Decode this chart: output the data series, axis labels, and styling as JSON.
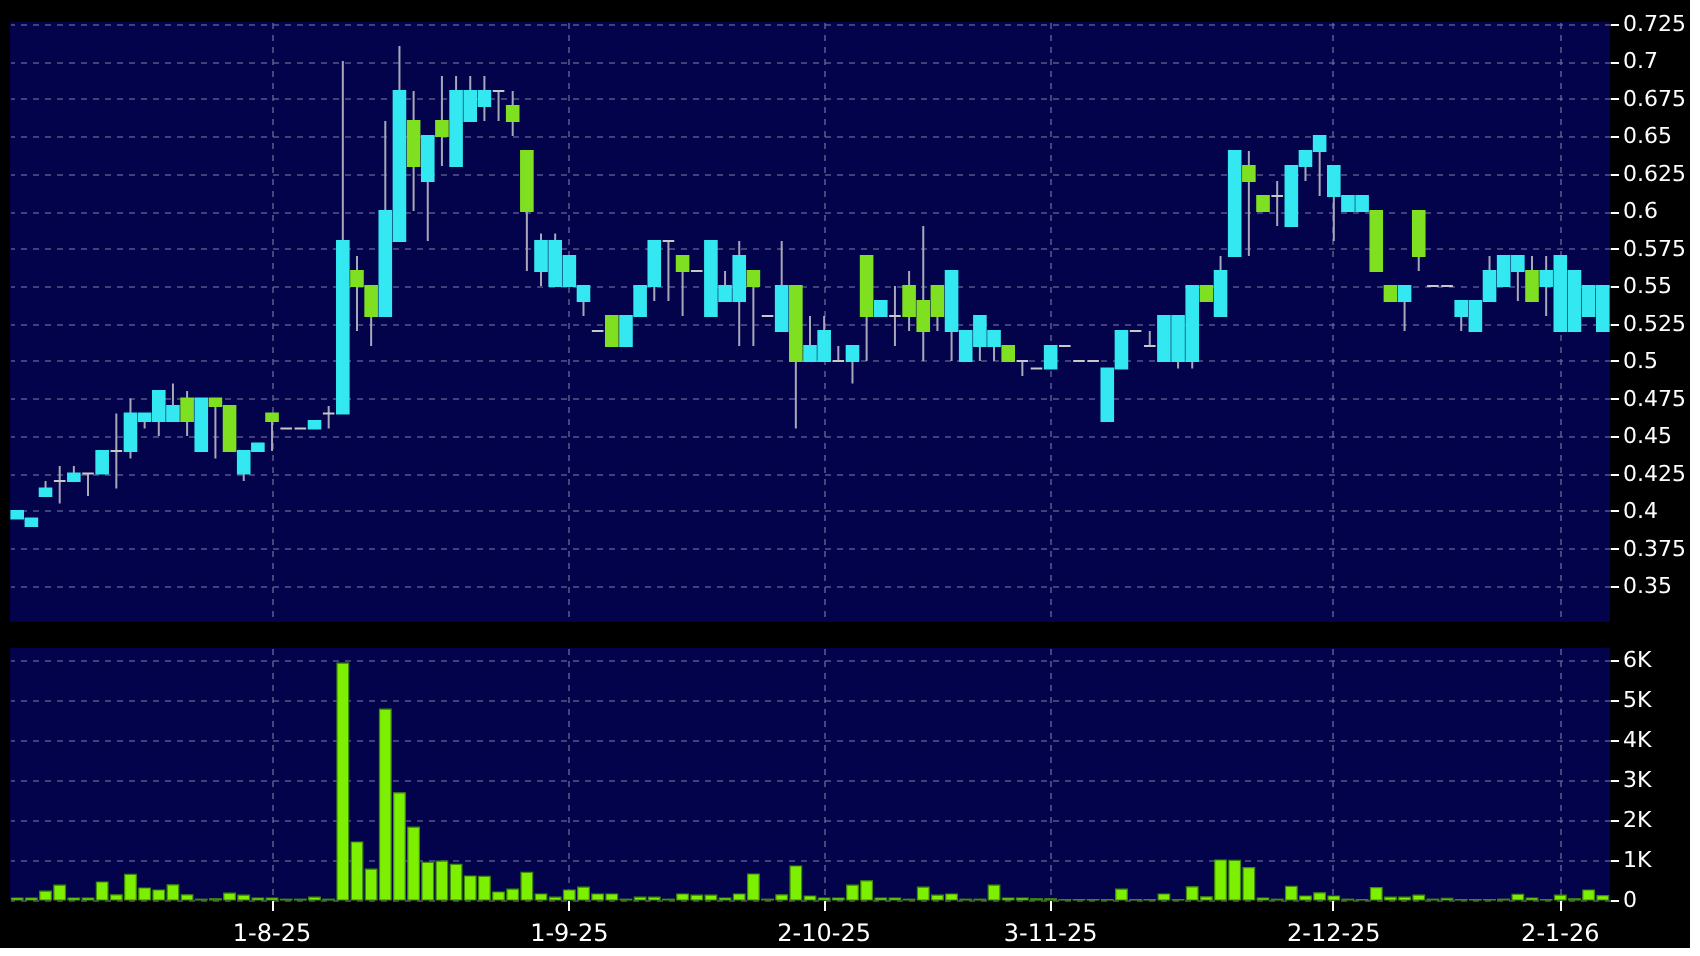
{
  "chart_data": [
    {
      "type": "candlestick",
      "tick_labels": "y",
      "grid": true,
      "ohlc": [
        [
          0.395,
          0.4,
          0.395,
          0.4
        ],
        [
          0.39,
          0.395,
          0.39,
          0.395
        ],
        [
          0.41,
          0.42,
          0.41,
          0.415
        ],
        [
          0.42,
          0.43,
          0.405,
          0.42
        ],
        [
          0.42,
          0.43,
          0.42,
          0.425
        ],
        [
          0.425,
          0.425,
          0.41,
          0.425
        ],
        [
          0.425,
          0.44,
          0.425,
          0.44
        ],
        [
          0.44,
          0.465,
          0.415,
          0.44
        ],
        [
          0.44,
          0.475,
          0.435,
          0.465
        ],
        [
          0.46,
          0.465,
          0.455,
          0.465
        ],
        [
          0.46,
          0.48,
          0.45,
          0.48
        ],
        [
          0.46,
          0.485,
          0.46,
          0.47
        ],
        [
          0.475,
          0.48,
          0.45,
          0.46
        ],
        [
          0.44,
          0.475,
          0.44,
          0.475
        ],
        [
          0.475,
          0.475,
          0.435,
          0.47
        ],
        [
          0.47,
          0.47,
          0.44,
          0.44
        ],
        [
          0.425,
          0.44,
          0.42,
          0.44
        ],
        [
          0.44,
          0.445,
          0.44,
          0.445
        ],
        [
          0.465,
          0.465,
          0.44,
          0.46
        ],
        [
          0.455,
          0.455,
          0.455,
          0.455
        ],
        [
          0.455,
          0.455,
          0.455,
          0.455
        ],
        [
          0.455,
          0.46,
          0.455,
          0.46
        ],
        [
          0.465,
          0.47,
          0.455,
          0.465
        ],
        [
          0.465,
          0.7,
          0.465,
          0.58
        ],
        [
          0.56,
          0.57,
          0.52,
          0.55
        ],
        [
          0.55,
          0.55,
          0.51,
          0.53
        ],
        [
          0.53,
          0.66,
          0.53,
          0.6
        ],
        [
          0.58,
          0.71,
          0.58,
          0.68
        ],
        [
          0.66,
          0.68,
          0.6,
          0.63
        ],
        [
          0.62,
          0.65,
          0.58,
          0.65
        ],
        [
          0.66,
          0.69,
          0.63,
          0.65
        ],
        [
          0.63,
          0.69,
          0.63,
          0.68
        ],
        [
          0.66,
          0.69,
          0.66,
          0.68
        ],
        [
          0.67,
          0.69,
          0.66,
          0.68
        ],
        [
          0.68,
          0.68,
          0.66,
          0.68
        ],
        [
          0.67,
          0.68,
          0.65,
          0.66
        ],
        [
          0.64,
          0.64,
          0.56,
          0.6
        ],
        [
          0.56,
          0.585,
          0.55,
          0.58
        ],
        [
          0.55,
          0.585,
          0.55,
          0.58
        ],
        [
          0.55,
          0.57,
          0.55,
          0.57
        ],
        [
          0.54,
          0.55,
          0.53,
          0.55
        ],
        [
          0.52,
          0.52,
          0.52,
          0.52
        ],
        [
          0.53,
          0.53,
          0.51,
          0.51
        ],
        [
          0.51,
          0.53,
          0.51,
          0.53
        ],
        [
          0.53,
          0.55,
          0.53,
          0.55
        ],
        [
          0.55,
          0.58,
          0.54,
          0.58
        ],
        [
          0.58,
          0.58,
          0.54,
          0.58
        ],
        [
          0.57,
          0.57,
          0.53,
          0.56
        ],
        [
          0.56,
          0.56,
          0.56,
          0.56
        ],
        [
          0.53,
          0.58,
          0.53,
          0.58
        ],
        [
          0.54,
          0.56,
          0.54,
          0.55
        ],
        [
          0.54,
          0.58,
          0.51,
          0.57
        ],
        [
          0.56,
          0.56,
          0.51,
          0.55
        ],
        [
          0.53,
          0.53,
          0.53,
          0.53
        ],
        [
          0.52,
          0.58,
          0.52,
          0.55
        ],
        [
          0.55,
          0.55,
          0.455,
          0.5
        ],
        [
          0.5,
          0.53,
          0.5,
          0.51
        ],
        [
          0.5,
          0.53,
          0.5,
          0.52
        ],
        [
          0.5,
          0.51,
          0.5,
          0.5
        ],
        [
          0.5,
          0.51,
          0.485,
          0.51
        ],
        [
          0.57,
          0.57,
          0.5,
          0.53
        ],
        [
          0.53,
          0.54,
          0.53,
          0.54
        ],
        [
          0.53,
          0.55,
          0.51,
          0.53
        ],
        [
          0.55,
          0.56,
          0.52,
          0.53
        ],
        [
          0.54,
          0.59,
          0.5,
          0.52
        ],
        [
          0.55,
          0.55,
          0.52,
          0.53
        ],
        [
          0.52,
          0.56,
          0.5,
          0.56
        ],
        [
          0.5,
          0.52,
          0.5,
          0.52
        ],
        [
          0.51,
          0.53,
          0.5,
          0.53
        ],
        [
          0.51,
          0.52,
          0.5,
          0.52
        ],
        [
          0.51,
          0.51,
          0.5,
          0.5
        ],
        [
          0.5,
          0.5,
          0.49,
          0.5
        ],
        [
          0.495,
          0.495,
          0.495,
          0.495
        ],
        [
          0.495,
          0.51,
          0.495,
          0.51
        ],
        [
          0.51,
          0.51,
          0.51,
          0.51
        ],
        [
          0.5,
          0.5,
          0.5,
          0.5
        ],
        [
          0.5,
          0.5,
          0.5,
          0.5
        ],
        [
          0.46,
          0.495,
          0.46,
          0.495
        ],
        [
          0.495,
          0.52,
          0.495,
          0.52
        ],
        [
          0.52,
          0.52,
          0.52,
          0.52
        ],
        [
          0.51,
          0.52,
          0.51,
          0.51
        ],
        [
          0.5,
          0.53,
          0.5,
          0.53
        ],
        [
          0.5,
          0.53,
          0.495,
          0.53
        ],
        [
          0.5,
          0.55,
          0.495,
          0.55
        ],
        [
          0.55,
          0.55,
          0.54,
          0.54
        ],
        [
          0.53,
          0.57,
          0.53,
          0.56
        ],
        [
          0.57,
          0.64,
          0.57,
          0.64
        ],
        [
          0.63,
          0.64,
          0.57,
          0.62
        ],
        [
          0.61,
          0.61,
          0.6,
          0.6
        ],
        [
          0.61,
          0.62,
          0.59,
          0.61
        ],
        [
          0.59,
          0.63,
          0.59,
          0.63
        ],
        [
          0.63,
          0.64,
          0.62,
          0.64
        ],
        [
          0.64,
          0.65,
          0.61,
          0.65
        ],
        [
          0.61,
          0.63,
          0.58,
          0.63
        ],
        [
          0.6,
          0.61,
          0.6,
          0.61
        ],
        [
          0.6,
          0.61,
          0.6,
          0.61
        ],
        [
          0.6,
          0.6,
          0.56,
          0.56
        ],
        [
          0.55,
          0.55,
          0.54,
          0.54
        ],
        [
          0.54,
          0.55,
          0.52,
          0.55
        ],
        [
          0.6,
          0.6,
          0.56,
          0.57
        ],
        [
          0.55,
          0.55,
          0.55,
          0.55
        ],
        [
          0.55,
          0.55,
          0.55,
          0.55
        ],
        [
          0.53,
          0.54,
          0.52,
          0.54
        ],
        [
          0.52,
          0.54,
          0.52,
          0.54
        ],
        [
          0.54,
          0.57,
          0.54,
          0.56
        ],
        [
          0.55,
          0.57,
          0.55,
          0.57
        ],
        [
          0.56,
          0.57,
          0.54,
          0.57
        ],
        [
          0.56,
          0.57,
          0.54,
          0.54
        ],
        [
          0.55,
          0.57,
          0.53,
          0.56
        ],
        [
          0.52,
          0.57,
          0.52,
          0.57
        ],
        [
          0.52,
          0.56,
          0.52,
          0.56
        ],
        [
          0.53,
          0.55,
          0.53,
          0.55
        ],
        [
          0.52,
          0.55,
          0.52,
          0.55
        ]
      ],
      "colors": [
        "#33e8f0",
        "#33e8f0",
        "#33e8f0",
        "#c8c8c8",
        "#33e8f0",
        "#c8c8c8",
        "#33e8f0",
        "#c8c8c8",
        "#33e8f0",
        "#33e8f0",
        "#33e8f0",
        "#33e8f0",
        "#7fe021",
        "#33e8f0",
        "#7fe021",
        "#7fe021",
        "#33e8f0",
        "#33e8f0",
        "#7fe021",
        "#c8c8c8",
        "#c8c8c8",
        "#33e8f0",
        "#c8c8c8",
        "#33e8f0",
        "#7fe021",
        "#7fe021",
        "#33e8f0",
        "#33e8f0",
        "#7fe021",
        "#33e8f0",
        "#7fe021",
        "#33e8f0",
        "#33e8f0",
        "#33e8f0",
        "#c8c8c8",
        "#7fe021",
        "#7fe021",
        "#33e8f0",
        "#33e8f0",
        "#33e8f0",
        "#33e8f0",
        "#c8c8c8",
        "#7fe021",
        "#33e8f0",
        "#33e8f0",
        "#33e8f0",
        "#c8c8c8",
        "#7fe021",
        "#c8c8c8",
        "#33e8f0",
        "#33e8f0",
        "#33e8f0",
        "#7fe021",
        "#c8c8c8",
        "#33e8f0",
        "#7fe021",
        "#33e8f0",
        "#33e8f0",
        "#c8c8c8",
        "#33e8f0",
        "#7fe021",
        "#33e8f0",
        "#c8c8c8",
        "#7fe021",
        "#7fe021",
        "#7fe021",
        "#33e8f0",
        "#33e8f0",
        "#33e8f0",
        "#33e8f0",
        "#7fe021",
        "#c8c8c8",
        "#c8c8c8",
        "#33e8f0",
        "#c8c8c8",
        "#c8c8c8",
        "#c8c8c8",
        "#33e8f0",
        "#33e8f0",
        "#c8c8c8",
        "#c8c8c8",
        "#33e8f0",
        "#33e8f0",
        "#33e8f0",
        "#7fe021",
        "#33e8f0",
        "#33e8f0",
        "#7fe021",
        "#7fe021",
        "#c8c8c8",
        "#33e8f0",
        "#33e8f0",
        "#33e8f0",
        "#33e8f0",
        "#33e8f0",
        "#33e8f0",
        "#7fe021",
        "#7fe021",
        "#33e8f0",
        "#7fe021",
        "#c8c8c8",
        "#c8c8c8",
        "#33e8f0",
        "#33e8f0",
        "#33e8f0",
        "#33e8f0",
        "#33e8f0",
        "#7fe021",
        "#33e8f0",
        "#33e8f0",
        "#33e8f0",
        "#33e8f0",
        "#33e8f0"
      ],
      "ylim": [
        0.326,
        0.726
      ],
      "yticks": [
        0.35,
        0.375,
        0.4,
        0.425,
        0.45,
        0.475,
        0.5,
        0.525,
        0.55,
        0.575,
        0.6,
        0.625,
        0.65,
        0.675,
        0.7,
        0.725
      ]
    },
    {
      "type": "bar",
      "grid": true,
      "color": "#7cf000",
      "categories": [
        null,
        null,
        null,
        null,
        null,
        null,
        null,
        null,
        null,
        null,
        null,
        null,
        null,
        null,
        null,
        null,
        null,
        null,
        "1-8-25",
        null,
        null,
        null,
        null,
        null,
        null,
        null,
        null,
        null,
        null,
        null,
        null,
        null,
        null,
        null,
        null,
        null,
        null,
        null,
        null,
        "1-9-25",
        null,
        null,
        null,
        null,
        null,
        null,
        null,
        null,
        null,
        null,
        null,
        null,
        null,
        null,
        null,
        null,
        null,
        "2-10-25",
        null,
        null,
        null,
        null,
        null,
        null,
        null,
        null,
        null,
        null,
        null,
        null,
        null,
        null,
        null,
        "3-11-25",
        null,
        null,
        null,
        null,
        null,
        null,
        null,
        null,
        null,
        null,
        null,
        null,
        null,
        null,
        null,
        null,
        null,
        null,
        null,
        "2-12-25",
        null,
        null,
        null,
        null,
        null,
        null,
        null,
        null,
        null,
        null,
        null,
        null,
        null,
        null,
        null,
        "2-1-26",
        null,
        null,
        null
      ],
      "values": [
        50,
        50,
        220,
        370,
        50,
        50,
        450,
        130,
        640,
        300,
        250,
        380,
        130,
        20,
        30,
        170,
        120,
        50,
        50,
        20,
        20,
        70,
        20,
        5920,
        1450,
        770,
        4770,
        2680,
        1820,
        940,
        970,
        890,
        600,
        590,
        200,
        270,
        690,
        150,
        70,
        250,
        320,
        150,
        150,
        20,
        70,
        70,
        20,
        150,
        120,
        120,
        50,
        150,
        650,
        20,
        130,
        850,
        100,
        50,
        50,
        370,
        480,
        50,
        50,
        20,
        320,
        120,
        150,
        20,
        20,
        370,
        50,
        50,
        30,
        30,
        10,
        10,
        10,
        10,
        270,
        10,
        10,
        150,
        10,
        330,
        80,
        1000,
        990,
        810,
        50,
        20,
        340,
        100,
        180,
        100,
        20,
        10,
        310,
        70,
        70,
        120,
        20,
        40,
        10,
        10,
        10,
        20,
        140,
        50,
        10,
        120,
        30,
        250,
        110
      ],
      "ylim": [
        0,
        6300
      ],
      "yticks": [
        0,
        {
          "value": 1000,
          "label": "1K"
        },
        {
          "value": 2000,
          "label": "2K"
        },
        {
          "value": 3000,
          "label": "3K"
        },
        {
          "value": 4000,
          "label": "4K"
        },
        {
          "value": 5000,
          "label": "5K"
        },
        {
          "value": 6000,
          "label": "6K"
        }
      ]
    }
  ]
}
